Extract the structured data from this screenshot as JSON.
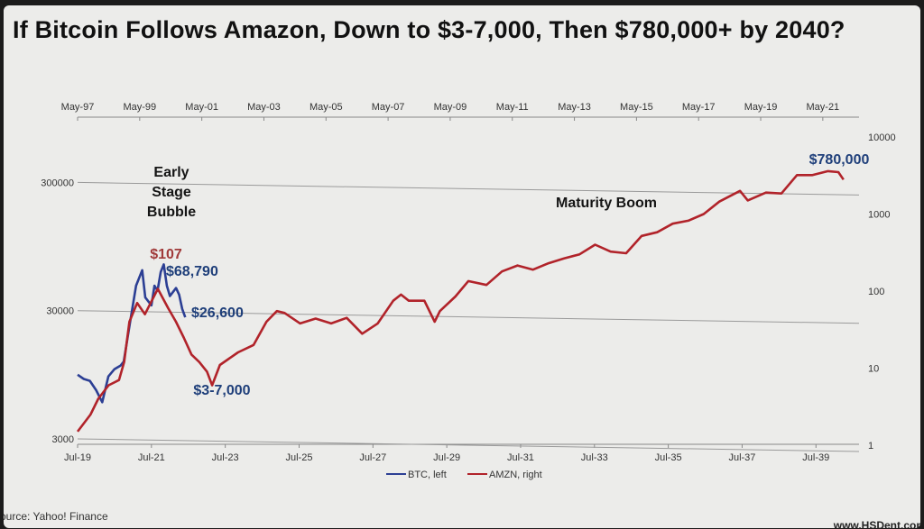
{
  "title": "If Bitcoin Follows Amazon, Down to $3-7,000, Then $780,000+ by 2040?",
  "source": "ource: Yahoo! Finance",
  "site": "www.HSDent.com",
  "colors": {
    "btc": "#2c3f94",
    "amzn": "#b1232a",
    "annotation_amzn": "#a03a3a",
    "annotation_btc": "#1f3f7a"
  },
  "chart_data": {
    "type": "line",
    "title": "If Bitcoin Follows Amazon, Down to $3-7,000, Then $780,000+ by 2040?",
    "x_bottom": {
      "tick_labels": [
        "Jul-19",
        "Jul-21",
        "Jul-23",
        "Jul-25",
        "Jul-27",
        "Jul-29",
        "Jul-31",
        "Jul-33",
        "Jul-35",
        "Jul-37",
        "Jul-39"
      ],
      "range": [
        "Jul-19",
        "Sep-40"
      ]
    },
    "x_top": {
      "tick_labels": [
        "May-97",
        "May-99",
        "May-01",
        "May-03",
        "May-05",
        "May-07",
        "May-09",
        "May-11",
        "May-13",
        "May-15",
        "May-17",
        "May-19",
        "May-21"
      ],
      "range": [
        "May-97",
        "Jul-22"
      ]
    },
    "y_left": {
      "scale": "log",
      "tick_labels": [
        "3000",
        "30000",
        "300000"
      ],
      "range": [
        3000,
        1000000
      ]
    },
    "y_right": {
      "scale": "log",
      "tick_labels": [
        "1",
        "10",
        "100",
        "1000",
        "10000"
      ],
      "range": [
        1,
        10000
      ]
    },
    "grid": "horizontal",
    "legend": {
      "placement": "bottom-center",
      "entries": [
        "BTC, left",
        "AMZN, right"
      ]
    },
    "annotations": [
      {
        "text_lines": [
          "Early",
          "Stage",
          "Bubble"
        ]
      },
      {
        "text": "$107",
        "series": "AMZN"
      },
      {
        "text": "$68,790",
        "series": "BTC"
      },
      {
        "text": "$26,600",
        "series": "BTC"
      },
      {
        "text": "$3-7,000"
      },
      {
        "text": "Maturity Boom"
      },
      {
        "text": "$780,000"
      }
    ],
    "series": [
      {
        "name": "BTC, left",
        "axis": "left",
        "points": [
          [
            "Jul-19",
            9500
          ],
          [
            "Sep-19",
            8800
          ],
          [
            "Nov-19",
            8500
          ],
          [
            "Jan-20",
            7200
          ],
          [
            "Mar-20",
            5800
          ],
          [
            "May-20",
            9200
          ],
          [
            "Jul-20",
            10500
          ],
          [
            "Sep-20",
            11200
          ],
          [
            "Oct-20",
            12000
          ],
          [
            "Dec-20",
            24000
          ],
          [
            "Feb-21",
            47000
          ],
          [
            "Apr-21",
            62000
          ],
          [
            "May-21",
            38000
          ],
          [
            "Jul-21",
            33000
          ],
          [
            "Aug-21",
            47000
          ],
          [
            "Sep-21",
            43000
          ],
          [
            "Oct-21",
            60000
          ],
          [
            "Nov-21",
            68790
          ],
          [
            "Dec-21",
            47000
          ],
          [
            "Jan-22",
            39000
          ],
          [
            "Mar-22",
            45000
          ],
          [
            "Apr-22",
            40000
          ],
          [
            "May-22",
            31000
          ],
          [
            "Jun-22",
            26600
          ]
        ]
      },
      {
        "name": "AMZN, right",
        "axis": "right",
        "points": [
          [
            "May-97",
            1.5
          ],
          [
            "Oct-97",
            2.5
          ],
          [
            "Jan-98",
            4
          ],
          [
            "May-98",
            6
          ],
          [
            "Sep-98",
            7
          ],
          [
            "Nov-98",
            12
          ],
          [
            "Jan-99",
            40
          ],
          [
            "Apr-99",
            70
          ],
          [
            "Jul-99",
            50
          ],
          [
            "Dec-99",
            107
          ],
          [
            "Apr-00",
            60
          ],
          [
            "Jul-00",
            40
          ],
          [
            "Oct-00",
            25
          ],
          [
            "Jan-01",
            15
          ],
          [
            "Apr-01",
            12
          ],
          [
            "Jul-01",
            9
          ],
          [
            "Sep-01",
            6
          ],
          [
            "Dec-01",
            11
          ],
          [
            "Jul-02",
            16
          ],
          [
            "Jan-03",
            20
          ],
          [
            "Jun-03",
            40
          ],
          [
            "Oct-03",
            55
          ],
          [
            "Jan-04",
            52
          ],
          [
            "Jul-04",
            38
          ],
          [
            "Jan-05",
            44
          ],
          [
            "Jul-05",
            38
          ],
          [
            "Jan-06",
            45
          ],
          [
            "Jul-06",
            28
          ],
          [
            "Jan-07",
            38
          ],
          [
            "Jul-07",
            75
          ],
          [
            "Oct-07",
            90
          ],
          [
            "Jan-08",
            75
          ],
          [
            "Jul-08",
            75
          ],
          [
            "Nov-08",
            40
          ],
          [
            "Jan-09",
            55
          ],
          [
            "Jul-09",
            85
          ],
          [
            "Dec-09",
            135
          ],
          [
            "Jul-10",
            120
          ],
          [
            "Jan-11",
            180
          ],
          [
            "Jul-11",
            215
          ],
          [
            "Jan-12",
            190
          ],
          [
            "Jul-12",
            230
          ],
          [
            "Jan-13",
            265
          ],
          [
            "Jul-13",
            300
          ],
          [
            "Jan-14",
            400
          ],
          [
            "Jul-14",
            325
          ],
          [
            "Jan-15",
            310
          ],
          [
            "Jul-15",
            520
          ],
          [
            "Jan-16",
            580
          ],
          [
            "Jul-16",
            750
          ],
          [
            "Jan-17",
            820
          ],
          [
            "Jul-17",
            1000
          ],
          [
            "Jan-18",
            1450
          ],
          [
            "Sep-18",
            2000
          ],
          [
            "Dec-18",
            1500
          ],
          [
            "Jul-19",
            1900
          ],
          [
            "Jan-20",
            1850
          ],
          [
            "Jul-20",
            3200
          ],
          [
            "Jan-21",
            3200
          ],
          [
            "Jul-21",
            3600
          ],
          [
            "Nov-21",
            3500
          ],
          [
            "Jan-22",
            2800
          ]
        ]
      }
    ]
  }
}
